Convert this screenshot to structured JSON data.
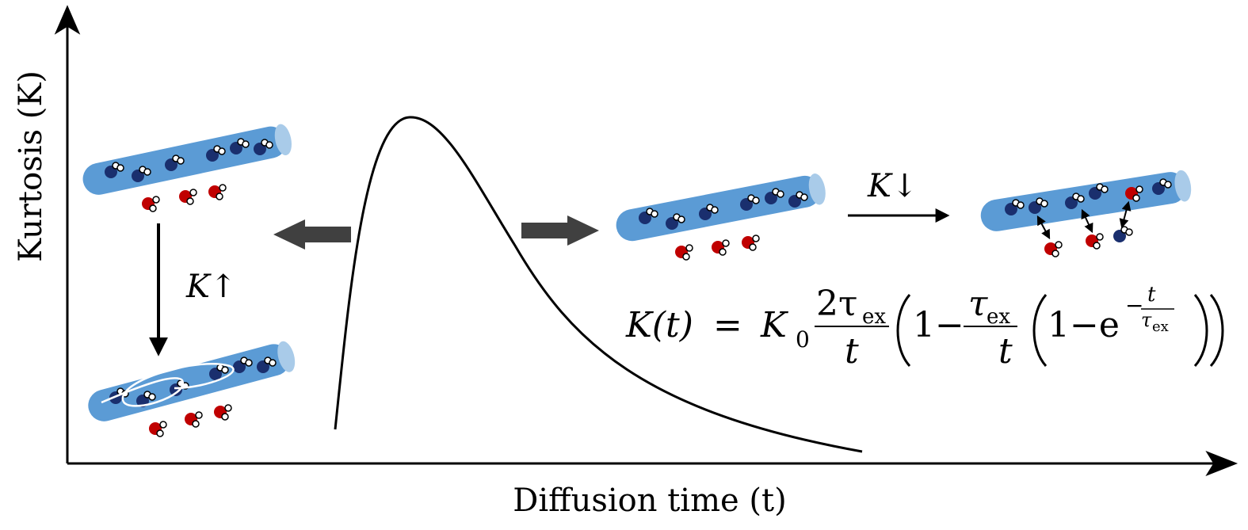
{
  "axes": {
    "y_label": "Kurtosis (K)",
    "x_label": "Diffusion time (t)"
  },
  "labels": {
    "increase": "K↑",
    "decrease": "K↓"
  },
  "formula": [
    "K(t)",
    "=",
    "K",
    "0",
    "2τ",
    "ex",
    "t",
    "1−",
    "τ",
    "ex",
    "t",
    "1−e",
    "−",
    "t",
    "τ",
    "ex"
  ]
}
